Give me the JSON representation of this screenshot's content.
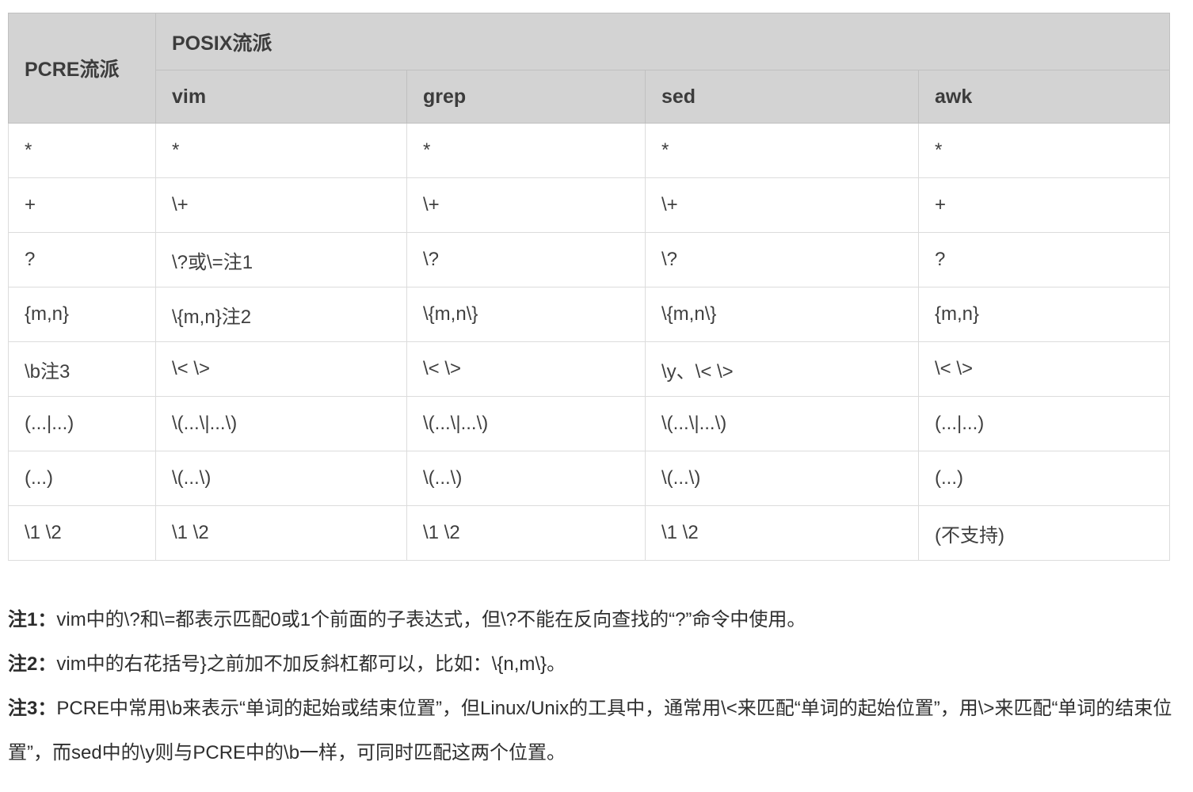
{
  "colors": {
    "header_background": "#d3d3d3",
    "header_border": "#c0c0c0",
    "body_border": "#dcdcdc",
    "table_text": "#3f3f3f",
    "note_text": "#2f2f2f"
  },
  "table": {
    "header": {
      "pcre": "PCRE流派",
      "posix": "POSIX流派",
      "tools": [
        "vim",
        "grep",
        "sed",
        "awk"
      ]
    },
    "rows": [
      [
        "*",
        "*",
        "*",
        "*",
        "*"
      ],
      [
        "+",
        "\\+",
        "\\+",
        "\\+",
        "+"
      ],
      [
        "?",
        "\\?或\\=注1",
        "\\?",
        "\\?",
        "?"
      ],
      [
        "{m,n}",
        "\\{m,n}注2",
        "\\{m,n\\}",
        "\\{m,n\\}",
        "{m,n}"
      ],
      [
        "\\b注3",
        "\\< \\>",
        "\\< \\>",
        "\\y、\\< \\>",
        "\\< \\>"
      ],
      [
        "(...|...)",
        "\\(...\\|...\\)",
        "\\(...\\|...\\)",
        "\\(...\\|...\\)",
        "(...|...)"
      ],
      [
        "(...)",
        "\\(...\\)",
        "\\(...\\)",
        "\\(...\\)",
        "(...)"
      ],
      [
        "\\1 \\2",
        "\\1 \\2",
        "\\1 \\2",
        "\\1 \\2",
        "(不支持)"
      ]
    ]
  },
  "notes": [
    {
      "label": "注1：",
      "text": "vim中的\\?和\\=都表示匹配0或1个前面的子表达式，但\\?不能在反向查找的“?”命令中使用。"
    },
    {
      "label": "注2：",
      "text": "vim中的右花括号}之前加不加反斜杠都可以，比如：\\{n,m\\}。"
    },
    {
      "label": "注3：",
      "text": "PCRE中常用\\b来表示“单词的起始或结束位置”，但Linux/Unix的工具中，通常用\\<来匹配“单词的起始位置”，用\\>来匹配“单词的结束位置”，而sed中的\\y则与PCRE中的\\b一样，可同时匹配这两个位置。"
    }
  ]
}
